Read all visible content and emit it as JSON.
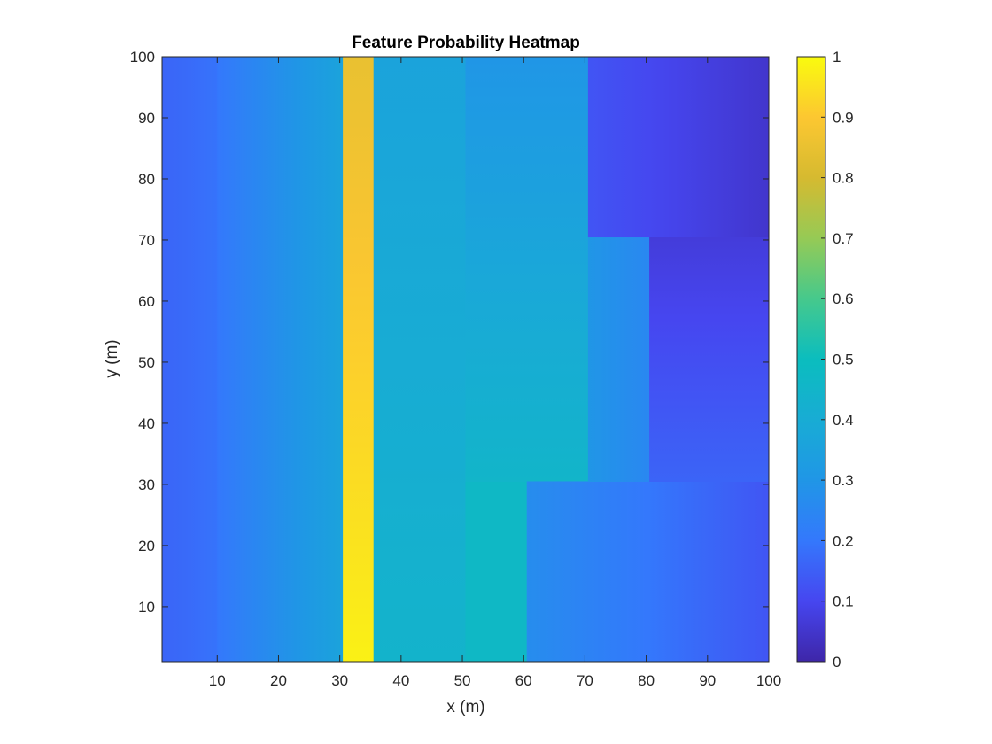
{
  "chart_data": {
    "type": "heatmap",
    "title": "Feature Probability Heatmap",
    "xlabel": "x (m)",
    "ylabel": "y (m)",
    "xlim": [
      1,
      100
    ],
    "ylim": [
      1,
      100
    ],
    "x_ticks": [
      "10",
      "20",
      "30",
      "40",
      "50",
      "60",
      "70",
      "80",
      "90",
      "100"
    ],
    "y_ticks": [
      "10",
      "20",
      "30",
      "40",
      "50",
      "60",
      "70",
      "80",
      "90",
      "100"
    ],
    "colormap": "parula",
    "clim": [
      0,
      1
    ],
    "colorbar_ticks": [
      "0",
      "0.1",
      "0.2",
      "0.3",
      "0.4",
      "0.5",
      "0.6",
      "0.7",
      "0.8",
      "0.9",
      "1"
    ],
    "regions": [
      {
        "x": [
          1,
          10
        ],
        "y": [
          1,
          100
        ],
        "value_left": 0.16,
        "value_right": 0.19
      },
      {
        "x": [
          10,
          30.5
        ],
        "y": [
          1,
          100
        ],
        "value_left": 0.2,
        "value_right": 0.36
      },
      {
        "x": [
          30.5,
          35.5
        ],
        "y": [
          1,
          100
        ],
        "value_bottom": 0.98,
        "value_top": 0.85
      },
      {
        "x": [
          35.5,
          50.5
        ],
        "y": [
          1,
          100
        ],
        "value_bottom": 0.44,
        "value_top": 0.36
      },
      {
        "x": [
          50.5,
          60.5
        ],
        "y": [
          1,
          30.5
        ],
        "value": 0.47
      },
      {
        "x": [
          50.5,
          70.5
        ],
        "y": [
          30.5,
          100
        ],
        "value_bottom": 0.45,
        "value_top": 0.3
      },
      {
        "x": [
          60.5,
          100
        ],
        "y": [
          1,
          30.5
        ],
        "value_left": 0.27,
        "value_right": 0.13
      },
      {
        "x": [
          70.5,
          80.5
        ],
        "y": [
          30.5,
          70.5
        ],
        "value_left": 0.3,
        "value_right": 0.25
      },
      {
        "x": [
          80.5,
          100
        ],
        "y": [
          30.5,
          70.5
        ],
        "value_bottom": 0.16,
        "value_top": 0.07
      },
      {
        "x": [
          70.5,
          100
        ],
        "y": [
          70.5,
          100
        ],
        "value_left": 0.13,
        "value_right": 0.05
      }
    ]
  }
}
